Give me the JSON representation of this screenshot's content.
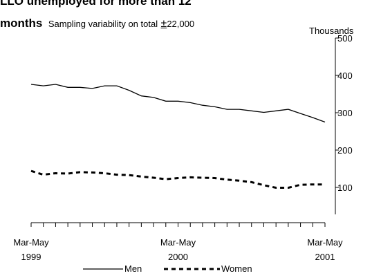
{
  "chart_data": {
    "type": "line",
    "title_line1": "LLO unemployed for more than 12",
    "title_line2": "months",
    "subtitle": "Sampling variability on total",
    "subtitle_pm": "±",
    "subtitle_value": "22,000",
    "units": "Thousands",
    "ylim": [
      0,
      500
    ],
    "yticks": [
      "500",
      "400",
      "300",
      "200",
      "100"
    ],
    "ytick_values": [
      500,
      400,
      300,
      200,
      100
    ],
    "x_labels": [
      {
        "line1": "Mar-May",
        "line2": "1999",
        "index": 0
      },
      {
        "line1": "Mar-May",
        "line2": "2000",
        "index": 12
      },
      {
        "line1": "Mar-May",
        "line2": "2001",
        "index": 24
      }
    ],
    "series": [
      {
        "name": "Men",
        "style": "solid",
        "values": [
          376,
          372,
          376,
          368,
          368,
          365,
          372,
          372,
          360,
          345,
          341,
          331,
          331,
          327,
          320,
          316,
          309,
          309,
          305,
          301,
          305,
          309,
          298,
          287,
          275
        ]
      },
      {
        "name": "Women",
        "style": "dashed",
        "values": [
          144,
          134,
          138,
          137,
          141,
          140,
          138,
          134,
          133,
          129,
          126,
          122,
          125,
          127,
          126,
          125,
          121,
          118,
          114,
          106,
          99,
          99,
          107,
          108,
          108
        ]
      }
    ],
    "grid": false,
    "legend": "bottom"
  }
}
